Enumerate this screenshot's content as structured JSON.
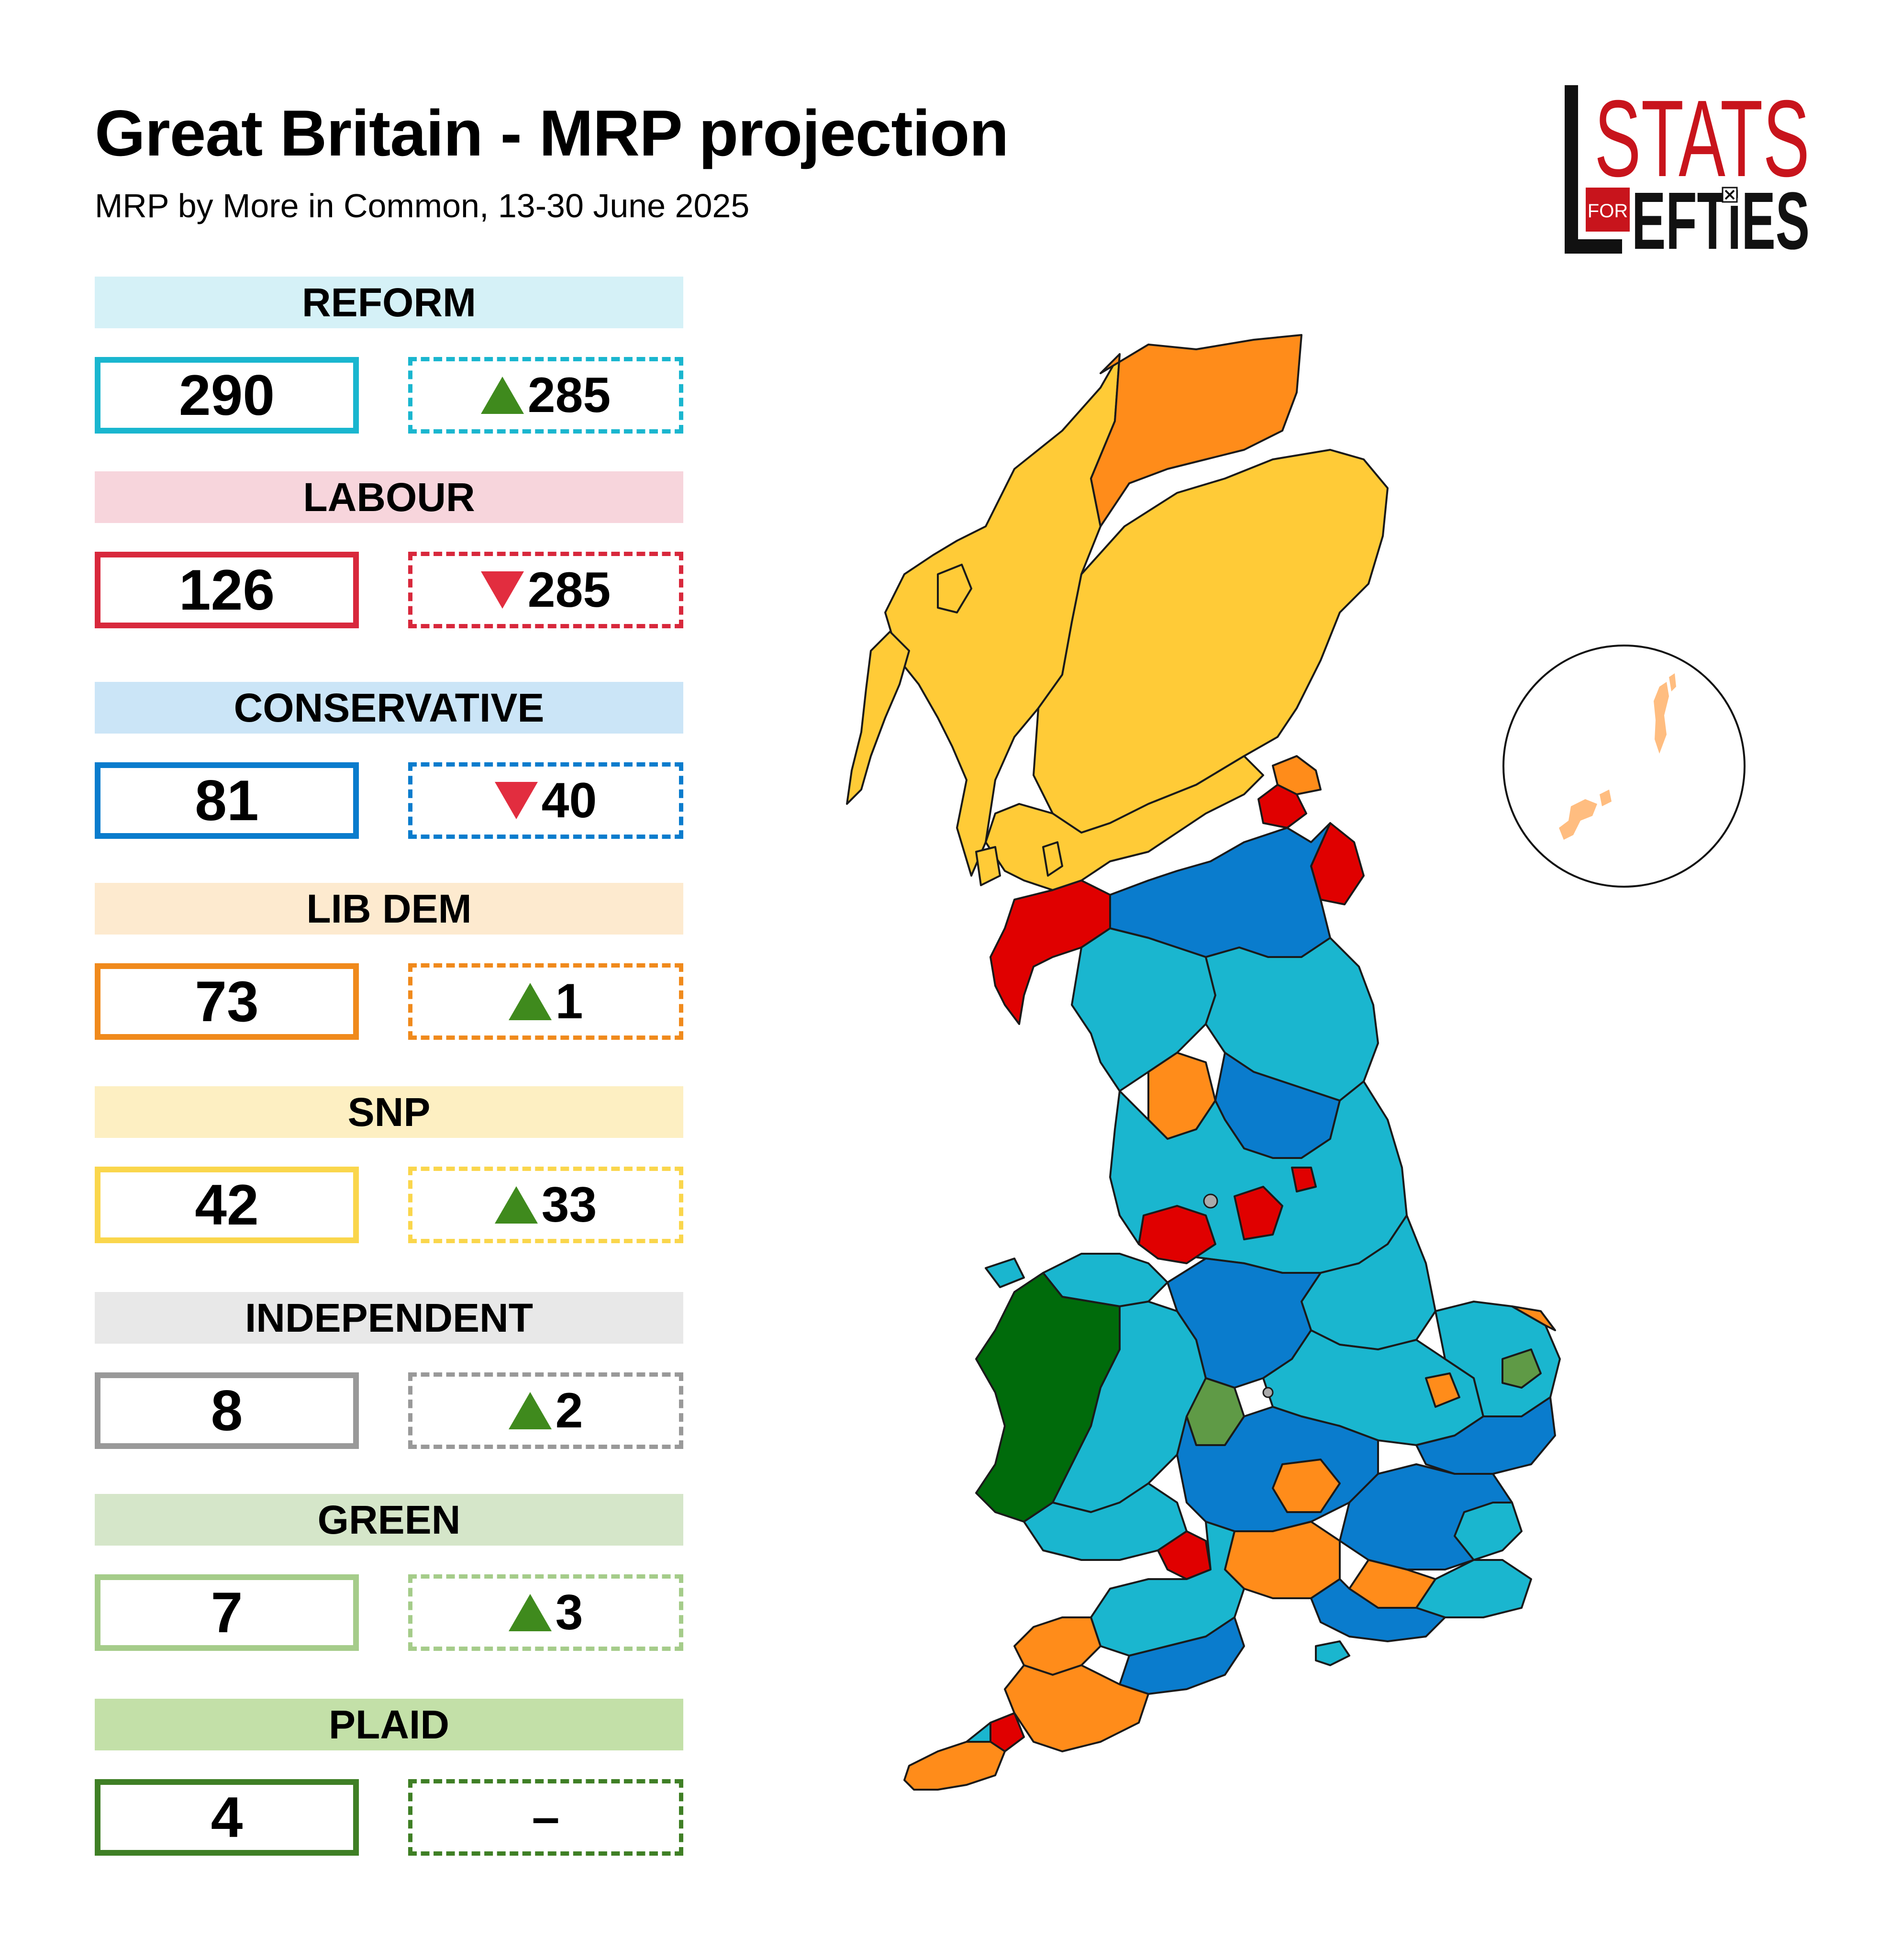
{
  "header": {
    "title": "Great Britain - MRP projection",
    "subtitle": "MRP by More in Common, 13-30 June 2025"
  },
  "logo": {
    "line1": "STATS",
    "line2": "EFTiES",
    "for": "FOR"
  },
  "parties": [
    {
      "name": "REFORM",
      "seats": "290",
      "direction": "up",
      "change": "285",
      "band_color": "#d5f1f7",
      "color": "#1ab6cf"
    },
    {
      "name": "LABOUR",
      "seats": "126",
      "direction": "down",
      "change": "285",
      "band_color": "#f7d5dc",
      "color": "#d8283c"
    },
    {
      "name": "CONSERVATIVE",
      "seats": "81",
      "direction": "down",
      "change": "40",
      "band_color": "#cbe5f7",
      "color": "#0a7ccd"
    },
    {
      "name": "LIB DEM",
      "seats": "73",
      "direction": "up",
      "change": "1",
      "band_color": "#fdeacf",
      "color": "#f08a1c"
    },
    {
      "name": "SNP",
      "seats": "42",
      "direction": "up",
      "change": "33",
      "band_color": "#fdefc2",
      "color": "#fad64c"
    },
    {
      "name": "INDEPENDENT",
      "seats": "8",
      "direction": "up",
      "change": "2",
      "band_color": "#e8e8e8",
      "color": "#999999"
    },
    {
      "name": "GREEN",
      "seats": "7",
      "direction": "up",
      "change": "3",
      "band_color": "#d5e6c9",
      "color": "#a5cc8a"
    },
    {
      "name": "PLAID",
      "seats": "4",
      "direction": "none",
      "change": "–",
      "band_color": "#c3e0a8",
      "color": "#3f7f25"
    }
  ],
  "map_colors": {
    "reform": "#1ab6cf",
    "labour": "#e00000",
    "conservative": "#0a7ccd",
    "libdem": "#ff8c1a",
    "snp": "#ffcb37",
    "green": "#5f9a46",
    "plaid": "#006b0b",
    "independent": "#aaaaaa"
  }
}
